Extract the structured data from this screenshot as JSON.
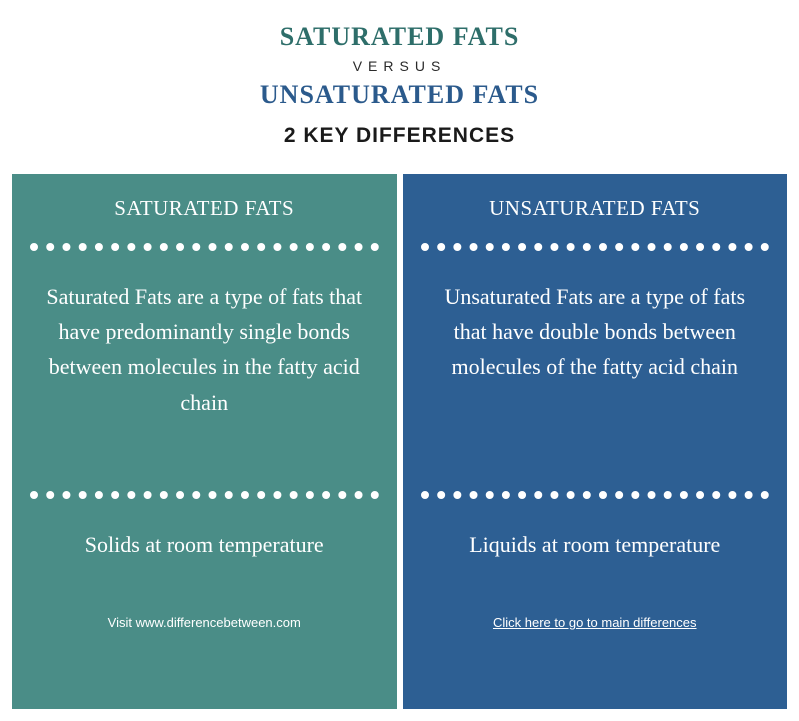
{
  "header": {
    "title_top": "SATURATED FATS",
    "title_top_color": "#2e6e6a",
    "versus": "VERSUS",
    "title_bottom": "UNSATURATED FATS",
    "title_bottom_color": "#2b5a8c",
    "subtitle": "2 KEY DIFFERENCES"
  },
  "columns": {
    "left": {
      "bg_color": "#4a8d87",
      "heading": "SATURATED FATS",
      "definition": "Saturated Fats are a type of fats that have predominantly single bonds between molecules in the fatty acid chain",
      "state": "Solids at room temperature",
      "footer_text": "Visit www.differencebetween.com",
      "footer_is_link": false
    },
    "right": {
      "bg_color": "#2d5f93",
      "heading": "UNSATURATED FATS",
      "definition": "Unsaturated Fats are a type of fats that have double bonds between molecules of the fatty acid chain",
      "state": "Liquids at room temperature",
      "footer_text": "Click here to go to main differences",
      "footer_is_link": true
    }
  },
  "style": {
    "dot_border_color": "#ffffff",
    "body_font_size": 22,
    "heading_font_size": 21
  }
}
